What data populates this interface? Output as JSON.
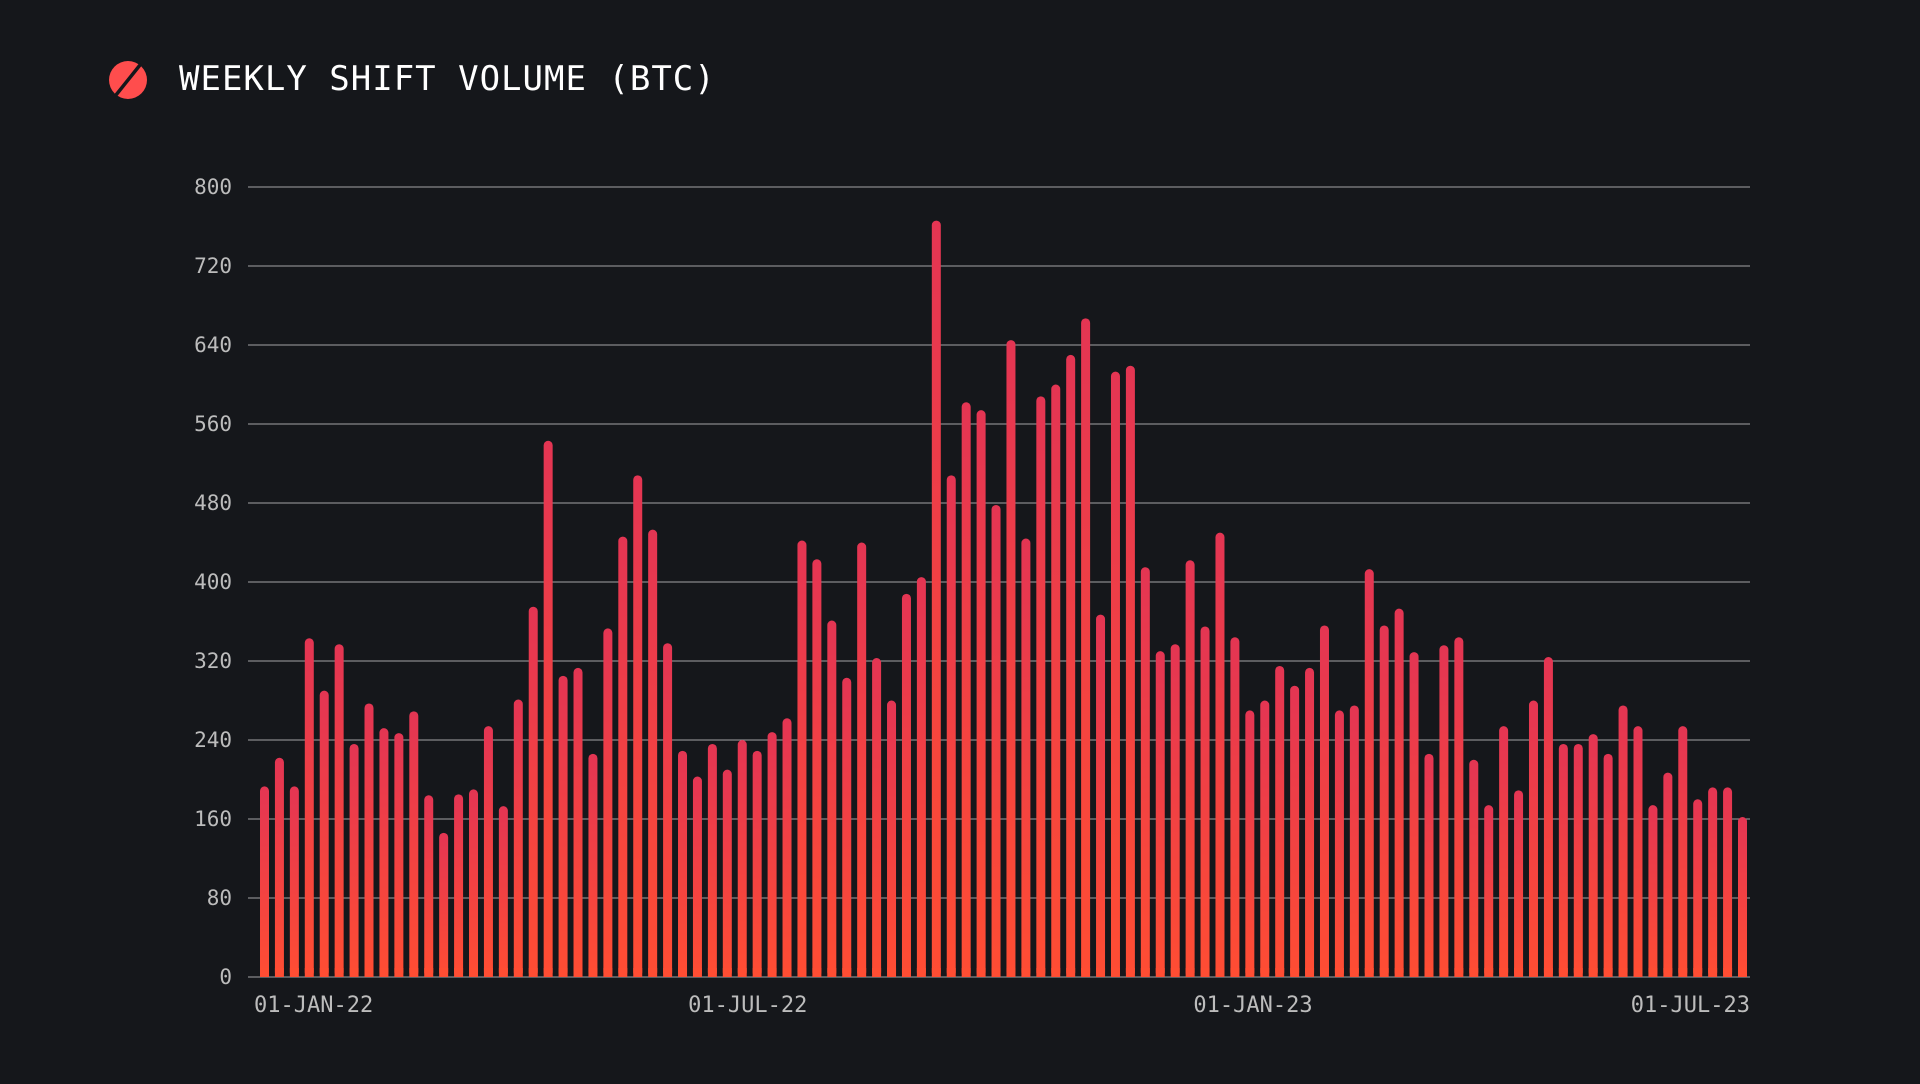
{
  "header": {
    "title": "WEEKLY SHIFT VOLUME (BTC)",
    "logo_icon": "slashed-circle-logo-icon"
  },
  "colors": {
    "background": "#15171b",
    "bar_top": "#e43553",
    "bar_bottom": "#ff4d33",
    "gridline": "#bcbcbc",
    "tick_label": "#bcbcbc",
    "title_text": "#ffffff",
    "logo": "#ff4d4d"
  },
  "chart_data": {
    "type": "bar",
    "title": "WEEKLY SHIFT VOLUME (BTC)",
    "xlabel": "",
    "ylabel": "",
    "ylim": [
      0,
      800
    ],
    "yticks": [
      0,
      80,
      160,
      240,
      320,
      400,
      480,
      560,
      640,
      720,
      800
    ],
    "grid": true,
    "legend": "none",
    "xrange": [
      "2021-12-31",
      "2023-07-01"
    ],
    "xticks": [
      {
        "date": "2022-01-01",
        "label": "01-JAN-22"
      },
      {
        "date": "2022-07-01",
        "label": "01-JUL-22"
      },
      {
        "date": "2023-01-01",
        "label": "01-JAN-23"
      },
      {
        "date": "2023-07-01",
        "label": "01-JUL-23"
      }
    ],
    "series": [
      {
        "values": [
          193,
          222,
          193,
          343,
          290,
          337,
          236,
          277,
          252,
          247,
          269,
          184,
          146,
          185,
          190,
          254,
          173,
          281,
          375,
          543,
          305,
          313,
          226,
          353,
          446,
          508,
          453,
          338,
          229,
          203,
          236,
          210,
          240,
          229,
          248,
          262,
          442,
          423,
          361,
          303,
          440,
          323,
          280,
          388,
          405,
          766,
          508,
          582,
          574,
          478,
          645,
          444,
          588,
          600,
          630,
          667,
          367,
          613,
          619,
          415,
          330,
          337,
          422,
          355,
          450,
          344,
          270,
          280,
          315,
          295,
          313,
          356,
          270,
          275,
          413,
          356,
          373,
          329,
          226,
          336,
          344,
          220,
          174,
          254,
          189,
          280,
          324,
          236,
          236,
          246,
          226,
          275,
          254,
          174,
          207,
          254,
          180,
          192,
          192,
          162
        ]
      }
    ]
  }
}
